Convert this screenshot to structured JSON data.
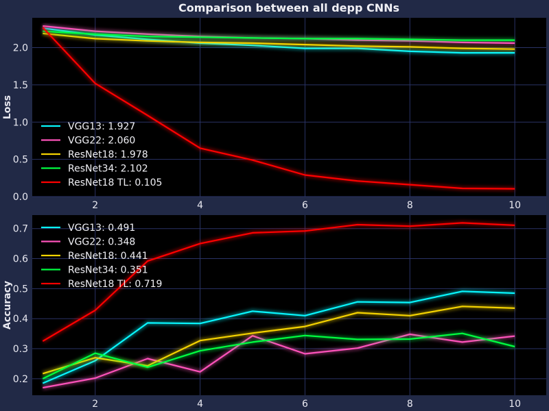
{
  "title": "Comparison between all depp CNNs",
  "colors": {
    "figure_bg": "#212946",
    "axes_bg": "#000000",
    "grid": "#2a3366"
  },
  "chart_data": [
    {
      "type": "line",
      "ylabel": "Loss",
      "xlabel": "",
      "xlim": [
        0.8,
        10.6
      ],
      "ylim": [
        0,
        2.4
      ],
      "xticks": [
        2,
        4,
        6,
        8,
        10
      ],
      "yticks": [
        0.0,
        0.5,
        1.0,
        1.5,
        2.0
      ],
      "ytick_decimals": 1,
      "grid": true,
      "legend_position": "bottom-left",
      "x": [
        1,
        2,
        3,
        4,
        5,
        6,
        7,
        8,
        9,
        10
      ],
      "series": [
        {
          "name": "VGG13",
          "legend": "VGG13: 1.927",
          "color": "#08F7FE",
          "values": [
            2.26,
            2.17,
            2.11,
            2.06,
            2.03,
            1.99,
            1.99,
            1.95,
            1.93,
            1.93
          ]
        },
        {
          "name": "VGG22",
          "legend": "VGG22: 2.060",
          "color": "#FE53BB",
          "values": [
            2.29,
            2.22,
            2.18,
            2.15,
            2.13,
            2.12,
            2.1,
            2.09,
            2.07,
            2.06
          ]
        },
        {
          "name": "ResNet18",
          "legend": "ResNet18: 1.978",
          "color": "#F5D300",
          "values": [
            2.19,
            2.12,
            2.09,
            2.07,
            2.06,
            2.04,
            2.02,
            2.01,
            1.99,
            1.98
          ]
        },
        {
          "name": "ResNet34",
          "legend": "ResNet34: 2.102",
          "color": "#00ff41",
          "values": [
            2.22,
            2.18,
            2.15,
            2.14,
            2.13,
            2.12,
            2.12,
            2.11,
            2.1,
            2.1
          ]
        },
        {
          "name": "ResNet18 TL",
          "legend": "ResNet18 TL: 0.105",
          "color": "#FF0000",
          "values": [
            2.27,
            1.52,
            1.09,
            0.65,
            0.49,
            0.29,
            0.21,
            0.16,
            0.11,
            0.105
          ]
        }
      ]
    },
    {
      "type": "line",
      "ylabel": "Accuracy",
      "xlabel": "",
      "xlim": [
        0.8,
        10.6
      ],
      "ylim": [
        0.145,
        0.745
      ],
      "xticks": [
        2,
        4,
        6,
        8,
        10
      ],
      "yticks": [
        0.2,
        0.3,
        0.4,
        0.5,
        0.6,
        0.7
      ],
      "ytick_decimals": 1,
      "grid": true,
      "legend_position": "top-left",
      "x": [
        1,
        2,
        3,
        4,
        5,
        6,
        7,
        8,
        9,
        10
      ],
      "series": [
        {
          "name": "VGG13",
          "legend": "VGG13: 0.491",
          "color": "#08F7FE",
          "values": [
            0.185,
            0.26,
            0.386,
            0.384,
            0.425,
            0.41,
            0.456,
            0.454,
            0.491,
            0.485
          ]
        },
        {
          "name": "VGG22",
          "legend": "VGG22: 0.348",
          "color": "#FE53BB",
          "values": [
            0.17,
            0.202,
            0.267,
            0.223,
            0.343,
            0.283,
            0.302,
            0.348,
            0.322,
            0.342
          ]
        },
        {
          "name": "ResNet18",
          "legend": "ResNet18: 0.441",
          "color": "#F5D300",
          "values": [
            0.217,
            0.27,
            0.243,
            0.327,
            0.352,
            0.374,
            0.42,
            0.41,
            0.441,
            0.435
          ]
        },
        {
          "name": "ResNet34",
          "legend": "ResNet34: 0.351",
          "color": "#00ff41",
          "values": [
            0.2,
            0.285,
            0.238,
            0.293,
            0.322,
            0.344,
            0.331,
            0.332,
            0.351,
            0.307
          ]
        },
        {
          "name": "ResNet18 TL",
          "legend": "ResNet18 TL: 0.719",
          "color": "#FF0000",
          "values": [
            0.325,
            0.428,
            0.592,
            0.65,
            0.686,
            0.692,
            0.713,
            0.708,
            0.719,
            0.711
          ]
        }
      ]
    }
  ]
}
